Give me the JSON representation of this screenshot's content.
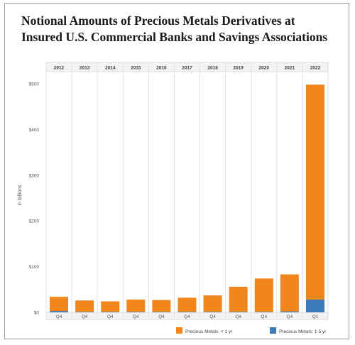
{
  "title": {
    "line1": "Notional Amounts of Precious Metals Derivatives at",
    "line2": "Insured U.S. Commercial Banks and Savings Associations"
  },
  "chart_data": {
    "type": "bar",
    "stacked": true,
    "categories": [
      "2012",
      "2013",
      "2014",
      "2015",
      "2016",
      "2017",
      "2018",
      "2019",
      "2020",
      "2021",
      "2022"
    ],
    "quarters": [
      "Q4",
      "Q4",
      "Q4",
      "Q4",
      "Q4",
      "Q4",
      "Q4",
      "Q4",
      "Q4",
      "Q4",
      "Q1"
    ],
    "series": [
      {
        "name": "Precious Metals: 1-5 yr",
        "color": "#3d7ab8",
        "values": [
          3,
          1,
          1,
          1,
          1,
          1,
          1,
          1,
          1,
          2,
          28
        ]
      },
      {
        "name": "Precious Metals: < 1 yr",
        "color": "#f0861c",
        "values": [
          31,
          25,
          23,
          27,
          26,
          31,
          36,
          55,
          73,
          81,
          470
        ]
      }
    ],
    "ylabel": "in billions",
    "ylim": [
      0,
      500
    ],
    "yticks": [
      0,
      100,
      200,
      300,
      400,
      500
    ],
    "ytick_labels": [
      "$0",
      "$100",
      "$200",
      "$300",
      "$400",
      "$500"
    ],
    "grid": "vertical column dividers",
    "legend_position": "bottom"
  }
}
